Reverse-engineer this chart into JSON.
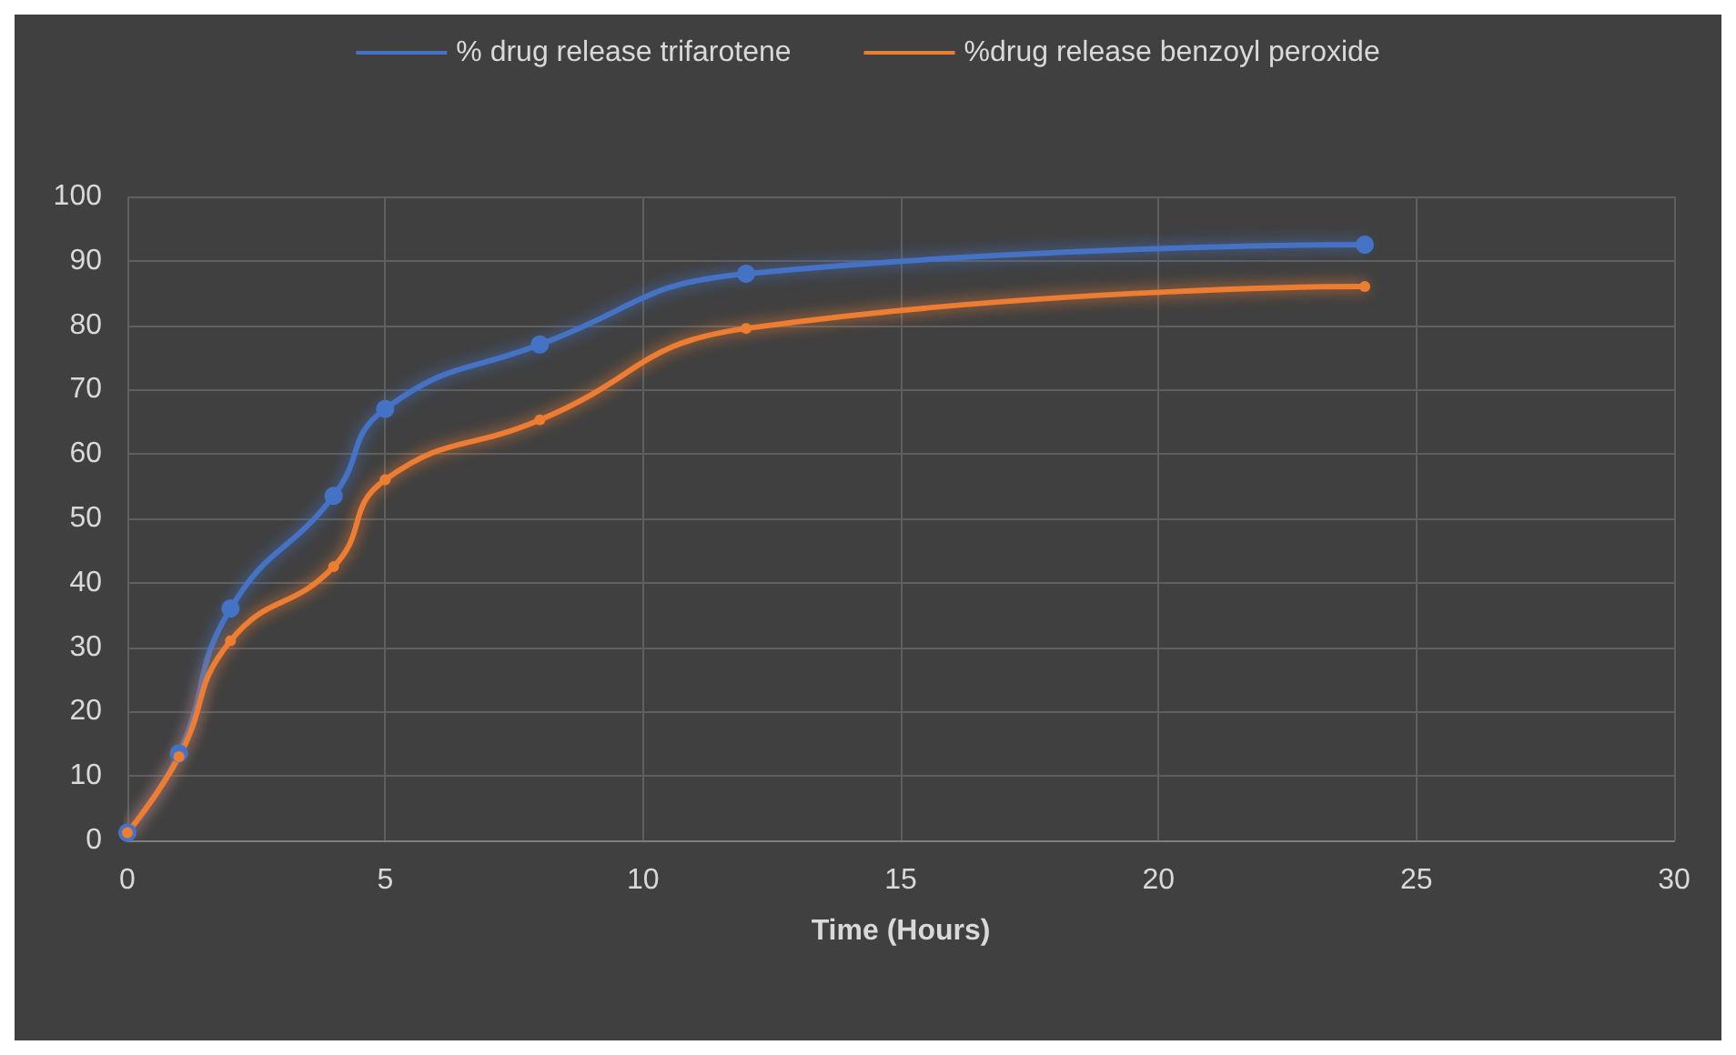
{
  "chart_data": {
    "type": "line",
    "xlabel": "Time (Hours)",
    "x": [
      0,
      1,
      2,
      4,
      5,
      8,
      12,
      24
    ],
    "series": [
      {
        "name": "% drug release trifarotene",
        "color": "#4472c4",
        "values": [
          1.2,
          13.5,
          36,
          53.5,
          67,
          77,
          88,
          92.5
        ]
      },
      {
        "name": "%drug release benzoyl peroxide",
        "color": "#ed7d31",
        "values": [
          1.2,
          13,
          31,
          42.5,
          56,
          65.3,
          79.5,
          86
        ]
      }
    ],
    "xlim": [
      0,
      30
    ],
    "xticks": [
      0,
      5,
      10,
      15,
      20,
      25,
      30
    ],
    "ylim": [
      0,
      100
    ],
    "yticks": [
      0,
      10,
      20,
      30,
      40,
      50,
      60,
      70,
      80,
      90,
      100
    ],
    "grid": true,
    "legend": "top",
    "marker": "circle",
    "line_style": "solid"
  }
}
